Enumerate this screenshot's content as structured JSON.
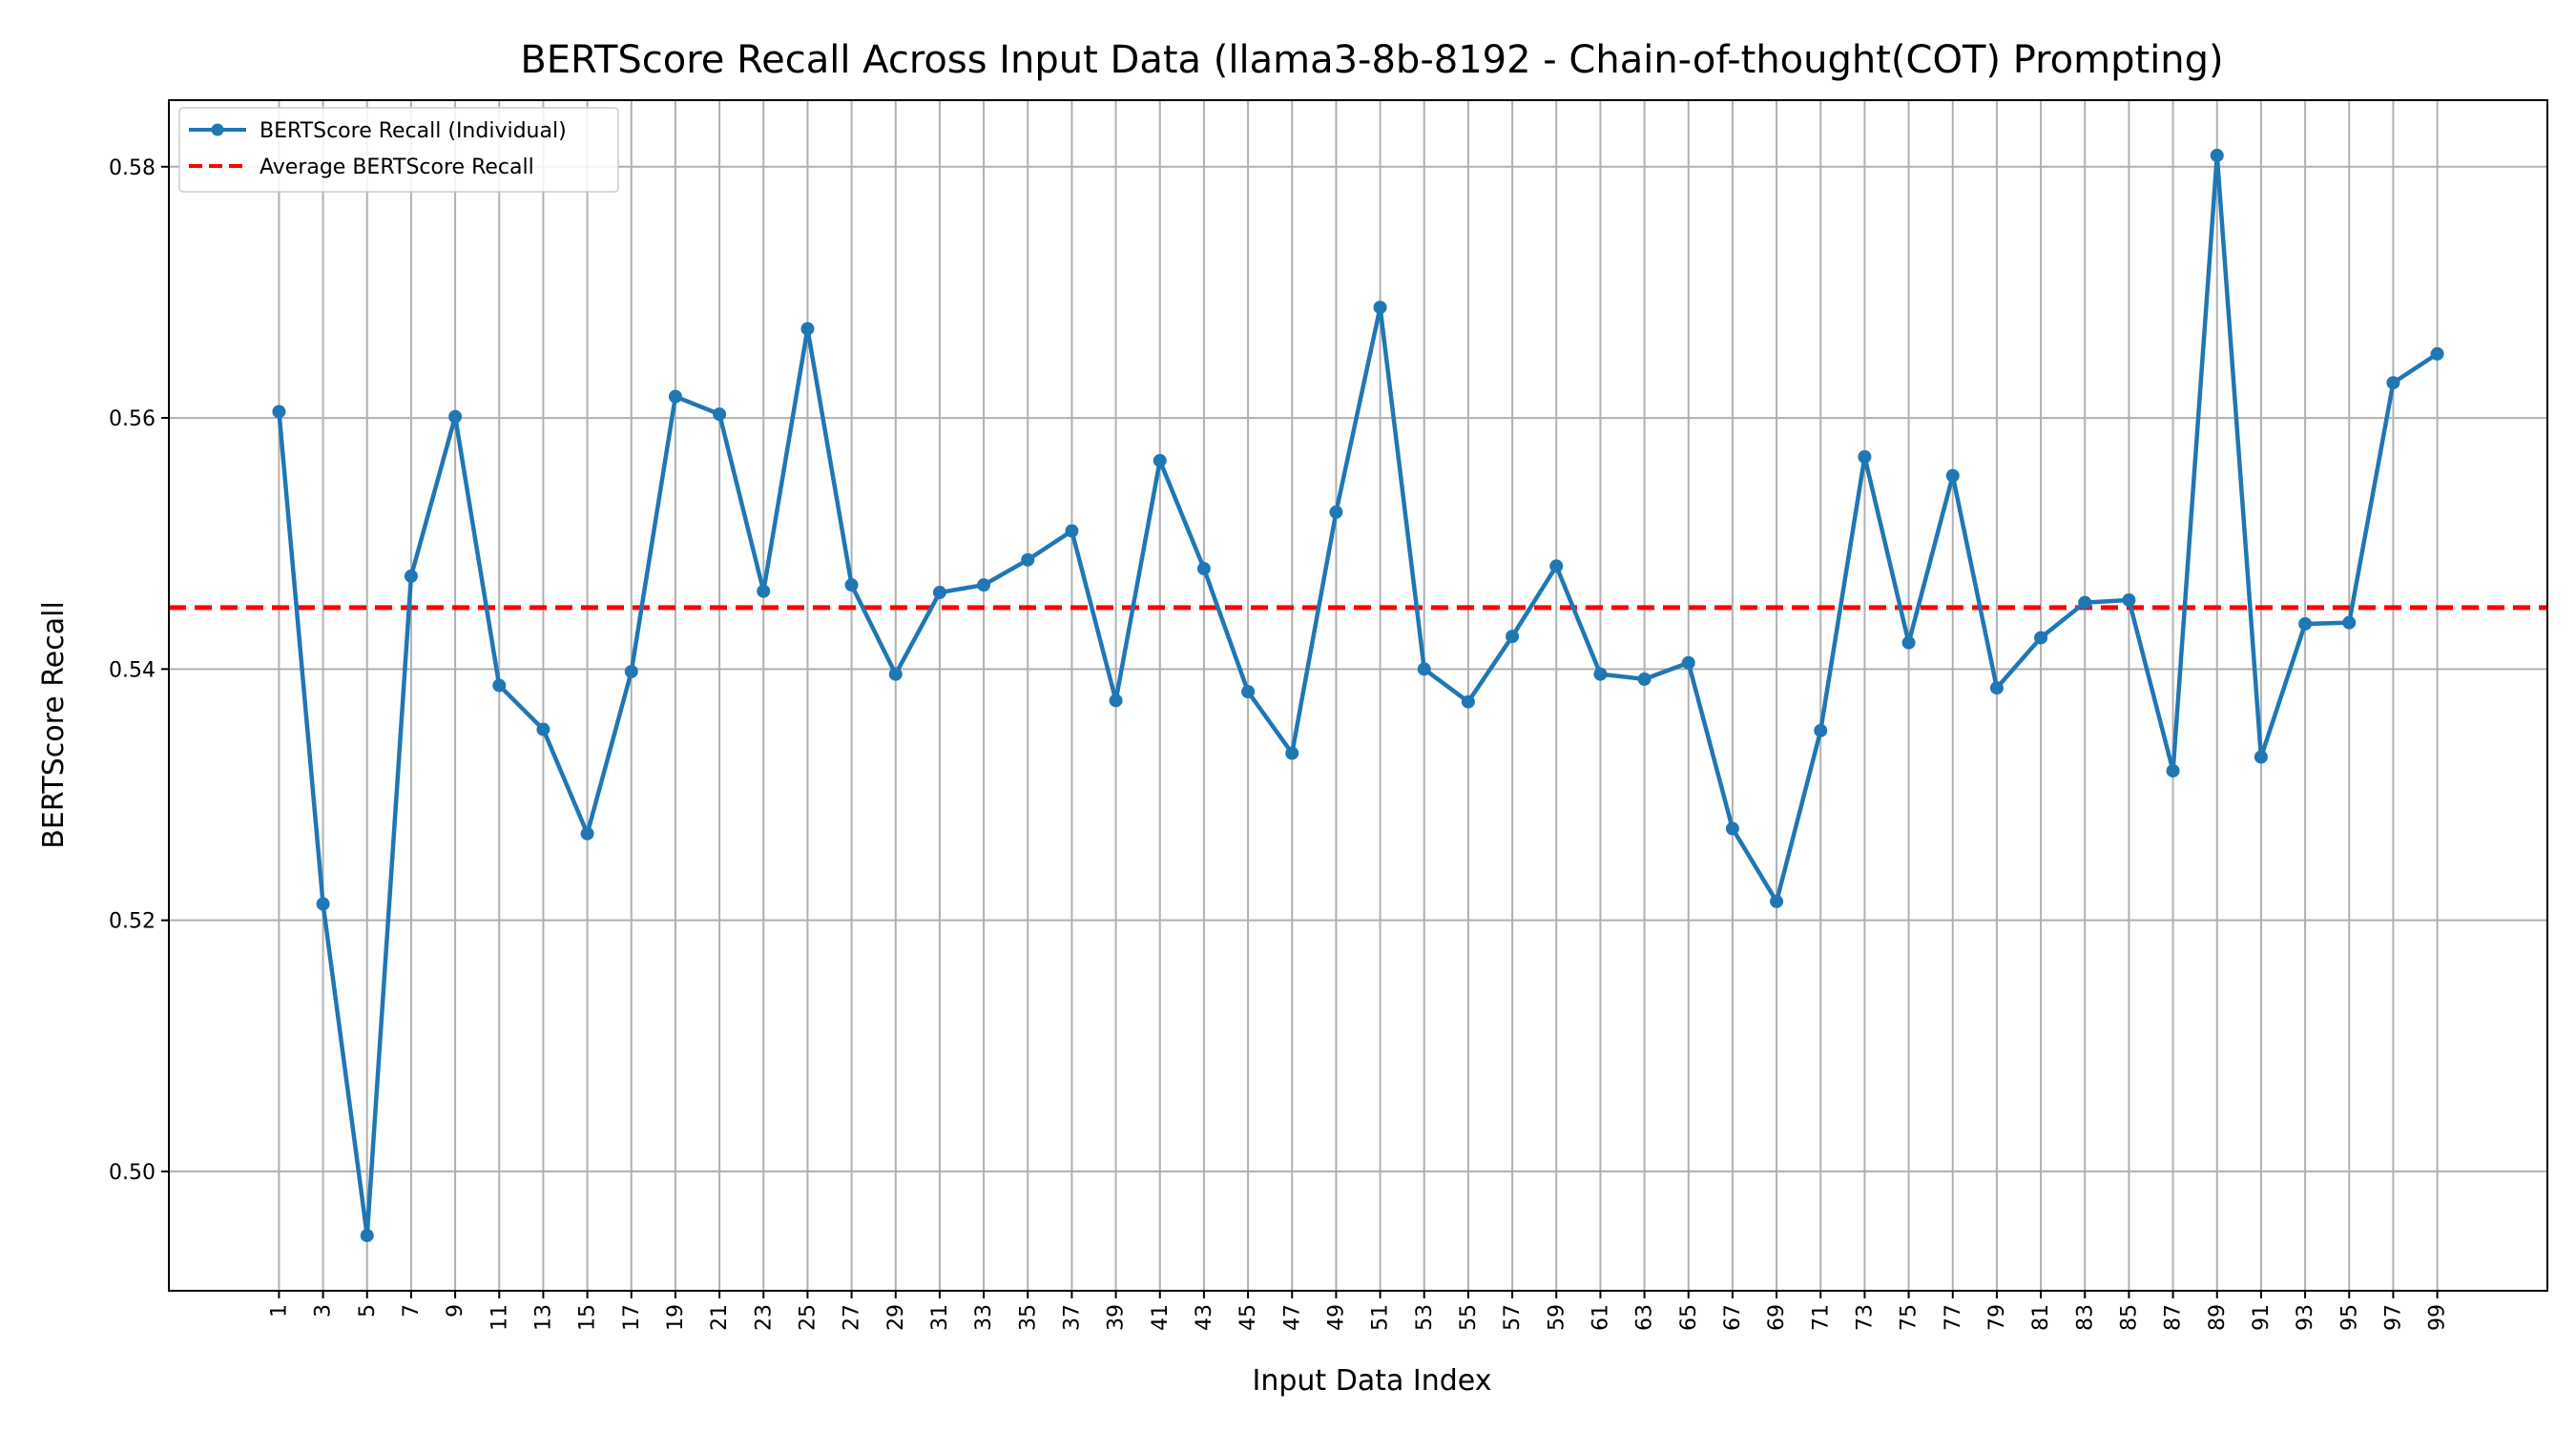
{
  "chart_data": {
    "type": "line",
    "title": "BERTScore Recall Across Input Data (llama3-8b-8192 - Chain-of-thought(COT) Prompting)",
    "xlabel": "Input Data Index",
    "ylabel": "BERTScore Recall",
    "x": [
      1,
      3,
      5,
      7,
      9,
      11,
      13,
      15,
      17,
      19,
      21,
      23,
      25,
      27,
      29,
      31,
      33,
      35,
      37,
      39,
      41,
      43,
      45,
      47,
      49,
      51,
      53,
      55,
      57,
      59,
      61,
      63,
      65,
      67,
      69,
      71,
      73,
      75,
      77,
      79,
      81,
      83,
      85,
      87,
      89,
      91,
      93,
      95,
      97,
      99
    ],
    "xlim": [
      -4,
      104
    ],
    "ylim": [
      0.4905,
      0.5853
    ],
    "yticks": [
      0.5,
      0.52,
      0.54,
      0.56,
      0.58
    ],
    "ytick_labels": [
      "0.50",
      "0.52",
      "0.54",
      "0.56",
      "0.58"
    ],
    "grid": true,
    "legend_position": "top-left",
    "series": [
      {
        "name": "BERTScore Recall (Individual)",
        "color": "#1f77b4",
        "style": "line-with-markers",
        "values": [
          0.5605,
          0.5213,
          0.4949,
          0.5474,
          0.5601,
          0.5387,
          0.5352,
          0.5269,
          0.5398,
          0.5617,
          0.5603,
          0.5462,
          0.5671,
          0.5467,
          0.5396,
          0.5461,
          0.5467,
          0.5487,
          0.551,
          0.5375,
          0.5566,
          0.548,
          0.5382,
          0.5333,
          0.5525,
          0.5688,
          0.54,
          0.5374,
          0.5426,
          0.5482,
          0.5396,
          0.5392,
          0.5405,
          0.5273,
          0.5215,
          0.5351,
          0.5569,
          0.5421,
          0.5554,
          0.5385,
          0.5425,
          0.5453,
          0.5455,
          0.5319,
          0.5809,
          0.533,
          0.5436,
          0.5437,
          0.5628,
          0.5651
        ]
      },
      {
        "name": "Average BERTScore Recall",
        "color": "#ff0000",
        "style": "dashed",
        "value": 0.5449
      }
    ]
  }
}
